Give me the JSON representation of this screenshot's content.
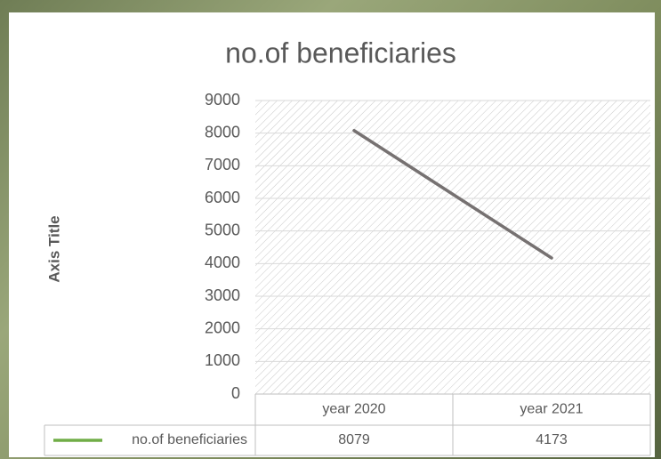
{
  "chart_data": {
    "type": "line",
    "title": "no.of beneficiaries",
    "y_label": "Axis Title",
    "categories": [
      "year 2020",
      "year 2021"
    ],
    "series": [
      {
        "name": "no.of beneficiaries",
        "color": "#767171",
        "legend_key_color": "#70ad47",
        "values": [
          8079,
          4173
        ]
      }
    ],
    "ylim": [
      0,
      9000
    ],
    "yticks": [
      0,
      1000,
      2000,
      3000,
      4000,
      5000,
      6000,
      7000,
      8000,
      9000
    ],
    "grid": true,
    "data_table": true
  }
}
